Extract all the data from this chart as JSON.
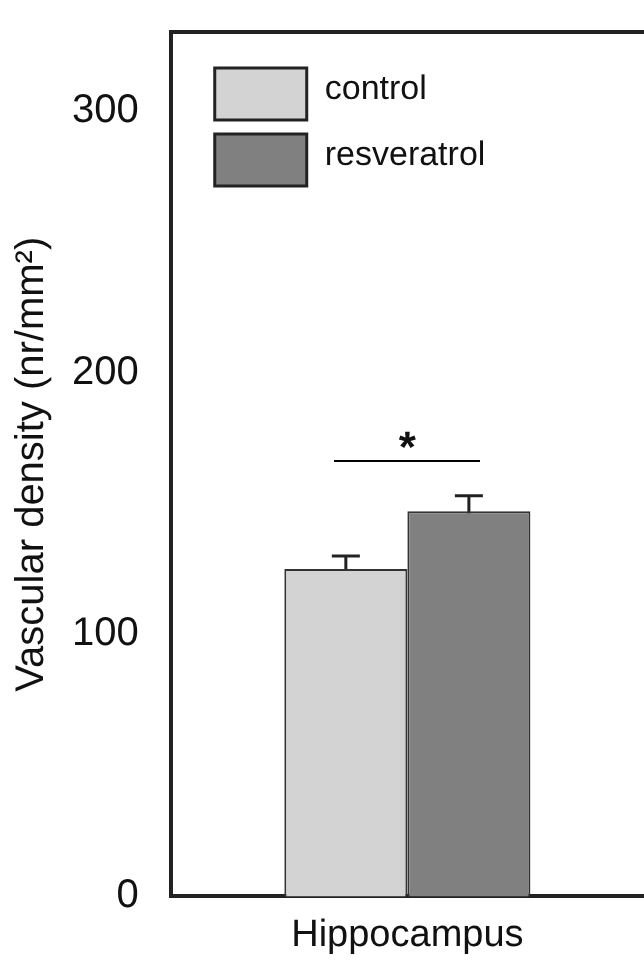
{
  "chart_data": {
    "type": "bar",
    "ylabel": "Vascular density (nr/mm²)",
    "categories": [
      "Hippocampus"
    ],
    "series": [
      {
        "name": "control",
        "color": "#d3d3d3",
        "values": [
          125
        ],
        "errors": [
          5
        ]
      },
      {
        "name": "resveratrol",
        "color": "#808080",
        "values": [
          147
        ],
        "errors": [
          6
        ]
      }
    ],
    "ylim": [
      0,
      330
    ],
    "yticks": [
      0,
      100,
      200,
      300
    ],
    "grid": false,
    "legend": "top left",
    "annotations": [
      "*"
    ]
  }
}
